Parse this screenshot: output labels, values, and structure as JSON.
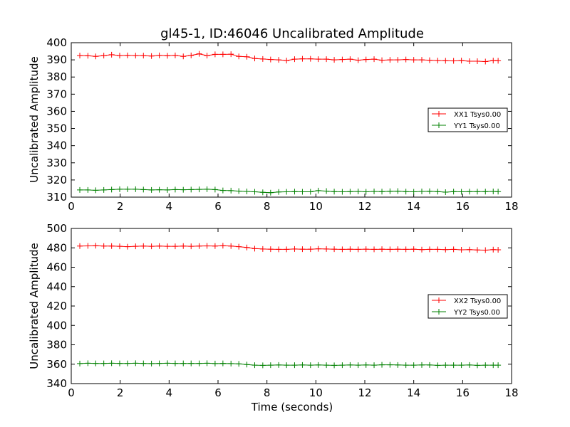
{
  "chart_data": [
    {
      "type": "line",
      "title": "gl45-1, ID:46046 Uncalibrated Amplitude",
      "xlabel": "",
      "ylabel": "Uncalibrated Amplitude",
      "xlim": [
        0,
        18
      ],
      "ylim": [
        310,
        400
      ],
      "x_ticks": [
        "0",
        "2",
        "4",
        "6",
        "8",
        "10",
        "12",
        "14",
        "16",
        "18"
      ],
      "y_ticks": [
        "310",
        "320",
        "330",
        "340",
        "350",
        "360",
        "370",
        "380",
        "390",
        "400"
      ],
      "grid": false,
      "legend_position": "center-right",
      "x": [
        0.35,
        0.68,
        1.0,
        1.33,
        1.65,
        1.98,
        2.3,
        2.63,
        2.95,
        3.28,
        3.6,
        3.93,
        4.25,
        4.58,
        4.9,
        5.23,
        5.55,
        5.88,
        6.2,
        6.53,
        6.85,
        7.18,
        7.5,
        7.83,
        8.15,
        8.48,
        8.8,
        9.13,
        9.45,
        9.78,
        10.1,
        10.43,
        10.75,
        11.08,
        11.4,
        11.73,
        12.05,
        12.38,
        12.7,
        13.03,
        13.35,
        13.68,
        14.0,
        14.33,
        14.65,
        14.98,
        15.3,
        15.63,
        15.95,
        16.28,
        16.6,
        16.93,
        17.25,
        17.45
      ],
      "series": [
        {
          "name": "XX1 Tsys0.00",
          "color": "#ff0000",
          "values": [
            392.5,
            392.4,
            392.0,
            392.5,
            393.0,
            392.5,
            392.6,
            392.5,
            392.5,
            392.2,
            392.6,
            392.4,
            392.6,
            392.0,
            392.6,
            393.5,
            392.5,
            393.2,
            393.2,
            393.3,
            392.0,
            391.8,
            390.8,
            390.5,
            390.2,
            390.0,
            389.6,
            390.4,
            390.6,
            390.6,
            390.4,
            390.4,
            390.0,
            390.2,
            390.4,
            389.8,
            390.2,
            390.4,
            389.8,
            390.0,
            390.0,
            390.2,
            390.0,
            390.0,
            389.8,
            389.6,
            389.5,
            389.4,
            389.6,
            389.2,
            389.2,
            389.0,
            389.6,
            389.5
          ]
        },
        {
          "name": "YY1 Tsys0.00",
          "color": "#008000",
          "values": [
            314.2,
            314.2,
            314.0,
            314.2,
            314.4,
            314.6,
            314.6,
            314.6,
            314.4,
            314.2,
            314.3,
            314.2,
            314.4,
            314.3,
            314.4,
            314.5,
            314.6,
            314.4,
            313.9,
            313.8,
            313.5,
            313.3,
            313.1,
            312.8,
            312.6,
            313.0,
            313.1,
            313.2,
            313.1,
            313.1,
            313.8,
            313.5,
            313.2,
            313.1,
            313.2,
            313.3,
            313.1,
            313.3,
            313.2,
            313.4,
            313.5,
            313.2,
            313.1,
            313.3,
            313.4,
            313.2,
            312.9,
            313.2,
            313.1,
            313.2,
            313.2,
            313.2,
            313.3,
            313.2
          ]
        }
      ]
    },
    {
      "type": "line",
      "title": "",
      "xlabel": "Time (seconds)",
      "ylabel": "Uncalibrated Amplitude",
      "xlim": [
        0,
        18
      ],
      "ylim": [
        340,
        500
      ],
      "x_ticks": [
        "0",
        "2",
        "4",
        "6",
        "8",
        "10",
        "12",
        "14",
        "16",
        "18"
      ],
      "y_ticks": [
        "340",
        "360",
        "380",
        "400",
        "420",
        "440",
        "460",
        "480",
        "500"
      ],
      "grid": false,
      "legend_position": "center-right",
      "x": [
        0.35,
        0.68,
        1.0,
        1.33,
        1.65,
        1.98,
        2.3,
        2.63,
        2.95,
        3.28,
        3.6,
        3.93,
        4.25,
        4.58,
        4.9,
        5.23,
        5.55,
        5.88,
        6.2,
        6.53,
        6.85,
        7.18,
        7.5,
        7.83,
        8.15,
        8.48,
        8.8,
        9.13,
        9.45,
        9.78,
        10.1,
        10.43,
        10.75,
        11.08,
        11.4,
        11.73,
        12.05,
        12.38,
        12.7,
        13.03,
        13.35,
        13.68,
        14.0,
        14.33,
        14.65,
        14.98,
        15.3,
        15.63,
        15.95,
        16.28,
        16.6,
        16.93,
        17.25,
        17.45
      ],
      "series": [
        {
          "name": "XX2 Tsys0.00",
          "color": "#ff0000",
          "values": [
            481.8,
            482.0,
            482.2,
            481.8,
            481.8,
            481.6,
            481.2,
            481.6,
            481.8,
            481.6,
            481.8,
            481.6,
            481.6,
            481.8,
            481.6,
            481.8,
            482.0,
            481.8,
            482.2,
            481.8,
            481.2,
            480.4,
            479.2,
            478.8,
            478.6,
            478.4,
            478.4,
            478.8,
            478.6,
            478.6,
            479.0,
            478.8,
            478.6,
            478.4,
            478.6,
            478.4,
            478.6,
            478.4,
            478.6,
            478.4,
            478.6,
            478.4,
            478.6,
            478.2,
            478.4,
            478.4,
            478.2,
            478.4,
            478.0,
            478.2,
            477.8,
            477.6,
            478.2,
            478.0
          ]
        },
        {
          "name": "YY2 Tsys0.00",
          "color": "#008000",
          "values": [
            360.6,
            361.0,
            360.8,
            360.8,
            361.0,
            360.8,
            360.8,
            361.0,
            360.8,
            360.6,
            360.8,
            361.0,
            360.8,
            360.8,
            360.8,
            360.8,
            361.0,
            360.6,
            360.8,
            360.6,
            360.4,
            359.6,
            359.0,
            358.8,
            359.0,
            359.2,
            359.0,
            359.0,
            359.2,
            359.0,
            359.2,
            359.0,
            358.8,
            359.0,
            359.2,
            359.0,
            359.2,
            359.0,
            359.4,
            359.4,
            359.2,
            359.0,
            359.0,
            359.2,
            359.2,
            358.8,
            359.0,
            359.0,
            359.0,
            359.2,
            358.8,
            359.0,
            359.0,
            359.0
          ]
        }
      ]
    }
  ]
}
